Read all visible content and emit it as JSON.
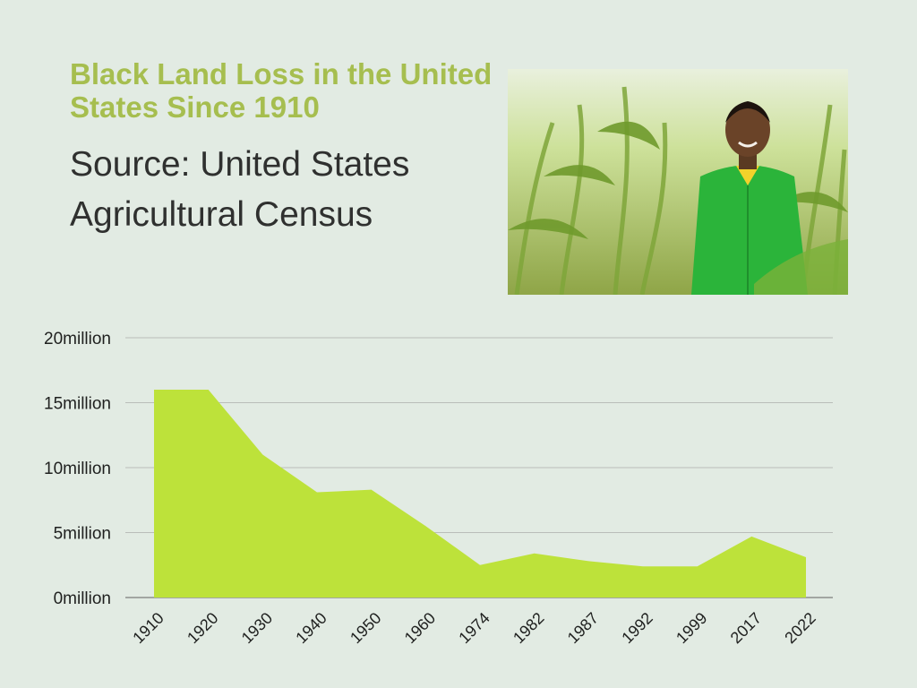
{
  "header": {
    "title": "Black Land Loss in the United States Since 1910",
    "subtitle": "Source: United States Agricultural Census"
  },
  "photo": {
    "subject": "woman in green coat standing in a corn field"
  },
  "colors": {
    "background": "#e2ebe3",
    "title": "#a6be4f",
    "area_fill": "#bde23a",
    "grid": "#b9bdb9"
  },
  "chart_data": {
    "type": "area",
    "title": "Black Land Loss in the United States Since 1910",
    "xlabel": "",
    "ylabel": "",
    "categories": [
      "1910",
      "1920",
      "1930",
      "1940",
      "1950",
      "1960",
      "1974",
      "1982",
      "1987",
      "1992",
      "1999",
      "2017",
      "2022"
    ],
    "series": [
      {
        "values": [
          16.0,
          16.0,
          11.0,
          8.1,
          8.3,
          5.5,
          2.5,
          3.4,
          2.8,
          2.4,
          2.4,
          4.7,
          3.1
        ]
      }
    ],
    "y_ticks": [
      "0million",
      "5million",
      "10million",
      "15million",
      "20million"
    ],
    "ylim": [
      0,
      20
    ],
    "unit": "million",
    "grid": true,
    "legend": "none"
  }
}
